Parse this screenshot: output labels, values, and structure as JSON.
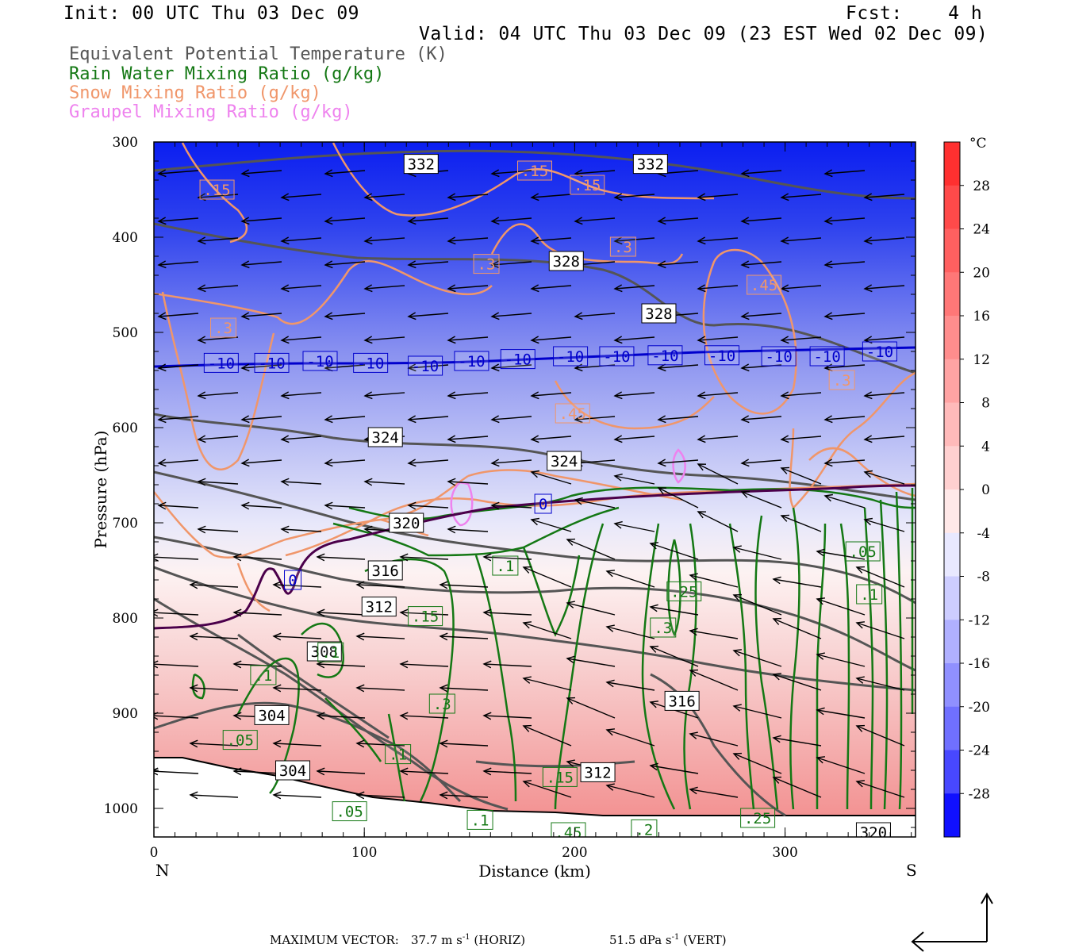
{
  "header": {
    "init": "Init: 00 UTC Thu 03 Dec 09",
    "fcst": "Fcst:    4 h",
    "valid": "Valid: 04 UTC Thu 03 Dec 09 (23 EST Wed 02 Dec 09)"
  },
  "legend": {
    "theta_e": "Equivalent Potential Temperature (K)",
    "rain": "Rain Water Mixing Ratio (g/kg)",
    "snow": "Snow Mixing Ratio (g/kg)",
    "graupel": "Graupel Mixing Ratio (g/kg)"
  },
  "colors": {
    "theta_e": "#555555",
    "rain": "#147814",
    "snow": "#f0966a",
    "graupel": "#ee82ee",
    "isotherm_minus10": "#0000cc",
    "isotherm_zero": "#4b004b"
  },
  "chart_data": {
    "type": "cross-section",
    "xlabel": "Distance (km)",
    "ylabel": "Pressure (hPa)",
    "x_ticks": [
      "0",
      "100",
      "200",
      "300"
    ],
    "y_ticks": [
      "300",
      "400",
      "500",
      "600",
      "700",
      "800",
      "900",
      "1000"
    ],
    "x_range_km": [
      0,
      362
    ],
    "y_range_hpa": [
      300,
      1030
    ],
    "x_end_labels": {
      "left": "N",
      "right": "S"
    },
    "colorbar": {
      "unit": "°C",
      "labels": [
        "28",
        "24",
        "20",
        "16",
        "12",
        "8",
        "4",
        "0",
        "-4",
        "-8",
        "-12",
        "-16",
        "-20",
        "-24",
        "-28"
      ]
    },
    "theta_e_labels": [
      {
        "label": "332",
        "x": 127,
        "p": 323
      },
      {
        "label": "332",
        "x": 236,
        "p": 323
      },
      {
        "label": "328",
        "x": 196,
        "p": 425
      },
      {
        "label": "328",
        "x": 240,
        "p": 480
      },
      {
        "label": "324",
        "x": 110,
        "p": 610
      },
      {
        "label": "324",
        "x": 195,
        "p": 635
      },
      {
        "label": "320",
        "x": 120,
        "p": 700
      },
      {
        "label": "316",
        "x": 110,
        "p": 750
      },
      {
        "label": "312",
        "x": 107,
        "p": 788
      },
      {
        "label": "308",
        "x": 81,
        "p": 835
      },
      {
        "label": "304",
        "x": 56,
        "p": 902
      },
      {
        "label": "304",
        "x": 66,
        "p": 960
      },
      {
        "label": "316",
        "x": 251,
        "p": 887
      },
      {
        "label": "312",
        "x": 211,
        "p": 962
      },
      {
        "label": "320",
        "x": 342,
        "p": 1025
      }
    ],
    "isotherm_labels": [
      {
        "label": "-10",
        "x": 32,
        "p": 532
      },
      {
        "label": "-10",
        "x": 56,
        "p": 532
      },
      {
        "label": "-10",
        "x": 79,
        "p": 530
      },
      {
        "label": "-10",
        "x": 103,
        "p": 532
      },
      {
        "label": "-10",
        "x": 129,
        "p": 535
      },
      {
        "label": "-10",
        "x": 151,
        "p": 530
      },
      {
        "label": "-10",
        "x": 173,
        "p": 528
      },
      {
        "label": "-10",
        "x": 198,
        "p": 525
      },
      {
        "label": "-10",
        "x": 220,
        "p": 525
      },
      {
        "label": "-10",
        "x": 243,
        "p": 524
      },
      {
        "label": "-10",
        "x": 270,
        "p": 524
      },
      {
        "label": "-10",
        "x": 297,
        "p": 525
      },
      {
        "label": "-10",
        "x": 320,
        "p": 525
      },
      {
        "label": "-10",
        "x": 345,
        "p": 520
      },
      {
        "label": "0",
        "x": 185,
        "p": 680
      },
      {
        "label": "0",
        "x": 66,
        "p": 760
      }
    ],
    "snow_labels": [
      {
        "label": ".15",
        "x": 30,
        "p": 350
      },
      {
        "label": ".15",
        "x": 181,
        "p": 330
      },
      {
        "label": ".15",
        "x": 206,
        "p": 345
      },
      {
        "label": ".3",
        "x": 158,
        "p": 428
      },
      {
        "label": ".3",
        "x": 223,
        "p": 410
      },
      {
        "label": ".3",
        "x": 33,
        "p": 495
      },
      {
        "label": ".45",
        "x": 290,
        "p": 450
      },
      {
        "label": ".45",
        "x": 199,
        "p": 585
      },
      {
        "label": ".3",
        "x": 327,
        "p": 550
      }
    ],
    "rain_labels": [
      {
        "label": ".1",
        "x": 167,
        "p": 745
      },
      {
        "label": ".25",
        "x": 252,
        "p": 772
      },
      {
        "label": ".15",
        "x": 129,
        "p": 798
      },
      {
        "label": ".3",
        "x": 242,
        "p": 810
      },
      {
        "label": ".1",
        "x": 84,
        "p": 836
      },
      {
        "label": ".1",
        "x": 52,
        "p": 860
      },
      {
        "label": ".05",
        "x": 337,
        "p": 730
      },
      {
        "label": ".1",
        "x": 340,
        "p": 775
      },
      {
        "label": ".3",
        "x": 137,
        "p": 890
      },
      {
        "label": ".05",
        "x": 41,
        "p": 928
      },
      {
        "label": ".1",
        "x": 116,
        "p": 943
      },
      {
        "label": ".15",
        "x": 193,
        "p": 967
      },
      {
        "label": ".05",
        "x": 93,
        "p": 1003
      },
      {
        "label": ".1",
        "x": 155,
        "p": 1012
      },
      {
        "label": ".25",
        "x": 287,
        "p": 1010
      },
      {
        "label": ".2",
        "x": 233,
        "p": 1022
      },
      {
        "label": ".45",
        "x": 197,
        "p": 1025
      }
    ],
    "graupel_labels": []
  },
  "footer": {
    "max_vector_label": "MAXIMUM VECTOR:",
    "horiz": "37.7 m s",
    "horiz_unit": "(HORIZ)",
    "vert": "51.5 dPa s",
    "vert_unit": "(VERT)",
    "exp": "-1"
  }
}
